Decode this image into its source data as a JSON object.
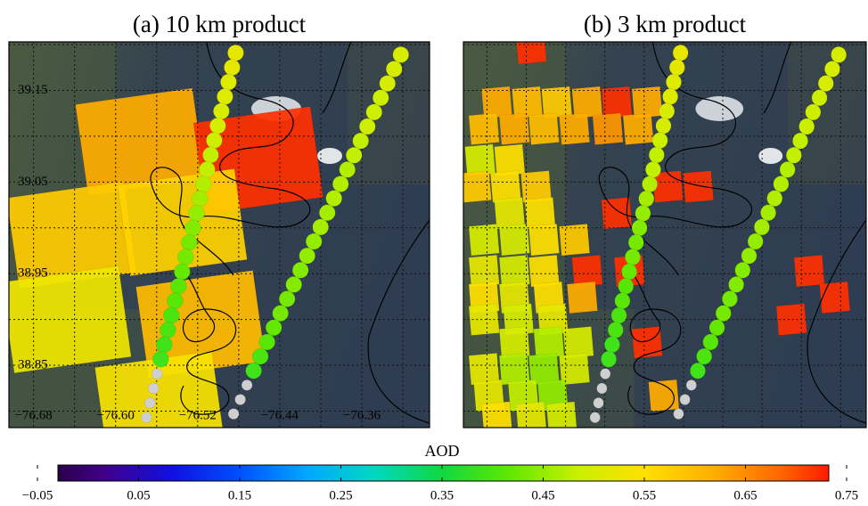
{
  "map": {
    "xlim": [
      -76.704,
      -76.294
    ],
    "ylim": [
      38.782,
      39.203
    ],
    "xticks": [
      {
        "value": -76.68,
        "label": "−76.68"
      },
      {
        "value": -76.6,
        "label": "−76.60"
      },
      {
        "value": -76.52,
        "label": "−76.52"
      },
      {
        "value": -76.44,
        "label": "−76.44"
      },
      {
        "value": -76.36,
        "label": "−76.36"
      }
    ],
    "yticks": [
      39.15,
      39.05,
      38.95,
      38.85
    ],
    "xgrid": [
      -76.68,
      -76.64,
      -76.6,
      -76.56,
      -76.52,
      -76.48,
      -76.44,
      -76.4,
      -76.36,
      -76.32
    ],
    "ygrid": [
      39.2,
      39.15,
      39.1,
      39.05,
      39.0,
      38.95,
      38.9,
      38.85,
      38.8
    ]
  },
  "panels": [
    {
      "title": "(a) 10 km product",
      "cell_size": [
        0.115,
        0.1
      ],
      "cells": [
        [
          -76.576,
          39.094,
          0.62
        ],
        [
          -76.461,
          39.074,
          0.72
        ],
        [
          -76.643,
          38.992,
          0.58
        ],
        [
          -76.535,
          39.006,
          0.57
        ],
        [
          -76.648,
          38.9,
          0.53
        ],
        [
          -76.517,
          38.895,
          0.6
        ],
        [
          -76.557,
          38.807,
          0.54
        ]
      ]
    },
    {
      "title": "(b) 3 km product",
      "cell_size": [
        0.0287,
        0.032
      ],
      "cells": [
        [
          -76.635,
          39.196,
          0.72
        ],
        [
          -76.67,
          39.137,
          0.62
        ],
        [
          -76.639,
          39.137,
          0.6
        ],
        [
          -76.609,
          39.137,
          0.58
        ],
        [
          -76.578,
          39.137,
          0.62
        ],
        [
          -76.548,
          39.137,
          0.72
        ],
        [
          -76.517,
          39.137,
          0.62
        ],
        [
          -76.683,
          39.108,
          0.6
        ],
        [
          -76.652,
          39.108,
          0.62
        ],
        [
          -76.622,
          39.108,
          0.6
        ],
        [
          -76.591,
          39.108,
          0.62
        ],
        [
          -76.557,
          39.108,
          0.64
        ],
        [
          -76.526,
          39.108,
          0.62
        ],
        [
          -76.687,
          39.074,
          0.5
        ],
        [
          -76.657,
          39.074,
          0.55
        ],
        [
          -76.691,
          39.045,
          0.58
        ],
        [
          -76.661,
          39.045,
          0.55
        ],
        [
          -76.63,
          39.045,
          0.58
        ],
        [
          -76.496,
          39.045,
          0.72
        ],
        [
          -76.465,
          39.045,
          0.72
        ],
        [
          -76.657,
          39.016,
          0.52
        ],
        [
          -76.626,
          39.016,
          0.55
        ],
        [
          -76.548,
          39.016,
          0.72
        ],
        [
          -76.683,
          38.987,
          0.5
        ],
        [
          -76.652,
          38.987,
          0.5
        ],
        [
          -76.622,
          38.987,
          0.55
        ],
        [
          -76.591,
          38.987,
          0.58
        ],
        [
          -76.683,
          38.953,
          0.52
        ],
        [
          -76.652,
          38.953,
          0.5
        ],
        [
          -76.622,
          38.953,
          0.55
        ],
        [
          -76.578,
          38.953,
          0.72
        ],
        [
          -76.535,
          38.953,
          0.72
        ],
        [
          -76.352,
          38.953,
          0.72
        ],
        [
          -76.683,
          38.924,
          0.55
        ],
        [
          -76.652,
          38.924,
          0.52
        ],
        [
          -76.617,
          38.924,
          0.55
        ],
        [
          -76.583,
          38.924,
          0.62
        ],
        [
          -76.326,
          38.924,
          0.72
        ],
        [
          -76.683,
          38.9,
          0.52
        ],
        [
          -76.648,
          38.9,
          0.5
        ],
        [
          -76.613,
          38.9,
          0.52
        ],
        [
          -76.37,
          38.9,
          0.72
        ],
        [
          -76.652,
          38.875,
          0.5
        ],
        [
          -76.617,
          38.875,
          0.47
        ],
        [
          -76.587,
          38.875,
          0.5
        ],
        [
          -76.517,
          38.875,
          0.72
        ],
        [
          -76.683,
          38.846,
          0.52
        ],
        [
          -76.652,
          38.846,
          0.47
        ],
        [
          -76.622,
          38.846,
          0.45
        ],
        [
          -76.591,
          38.846,
          0.5
        ],
        [
          -76.678,
          38.817,
          0.52
        ],
        [
          -76.643,
          38.817,
          0.48
        ],
        [
          -76.613,
          38.817,
          0.45
        ],
        [
          -76.5,
          38.817,
          0.62
        ],
        [
          -76.67,
          38.793,
          0.55
        ],
        [
          -76.635,
          38.793,
          0.52
        ],
        [
          -76.604,
          38.793,
          0.5
        ]
      ]
    }
  ],
  "tracks": [
    {
      "from": [
        -76.483,
        39.191
      ],
      "to": [
        -76.57,
        38.793
      ],
      "aod": [
        0.52,
        0.52,
        0.51,
        0.51,
        0.5,
        0.5,
        0.49,
        0.48,
        0.48,
        0.47,
        0.46,
        0.45,
        0.44,
        0.43,
        0.43,
        0.42,
        0.41,
        0.41,
        0.4,
        0.4,
        0.39,
        0.39,
        null,
        null,
        null,
        null
      ]
    },
    {
      "from": [
        -76.322,
        39.189
      ],
      "to": [
        -76.485,
        38.797
      ],
      "aod": [
        0.5,
        0.5,
        0.5,
        0.49,
        0.49,
        0.49,
        0.48,
        0.48,
        0.47,
        0.47,
        0.47,
        0.46,
        0.46,
        0.45,
        0.45,
        0.44,
        0.44,
        0.43,
        0.43,
        0.42,
        0.41,
        0.4,
        0.39,
        null,
        null,
        null
      ]
    }
  ],
  "colorbar": {
    "label": "AOD",
    "clim": [
      -0.05,
      0.75
    ],
    "ticks": [
      {
        "value": -0.05,
        "label": "−0.05"
      },
      0.05,
      0.15,
      0.25,
      0.35,
      0.45,
      0.55,
      0.65,
      0.75
    ],
    "colors": [
      "#200030",
      "#40008a",
      "#1010e0",
      "#0050ff",
      "#00a8ff",
      "#00d8c0",
      "#10d840",
      "#60e800",
      "#c8f000",
      "#ffe000",
      "#ffb000",
      "#ff6800",
      "#ff0000"
    ],
    "missing_color": "#cfcfcf"
  }
}
